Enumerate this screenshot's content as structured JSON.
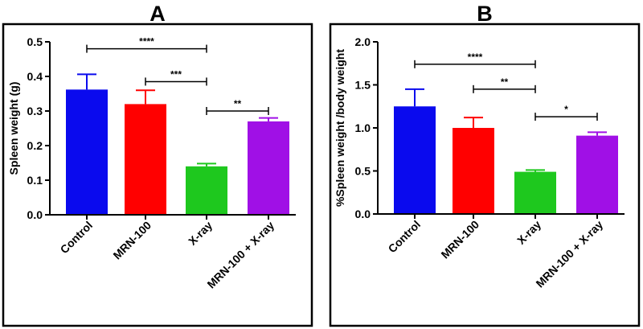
{
  "chart_data": [
    {
      "panel_label": "A",
      "type": "bar",
      "title": "",
      "xlabel": "",
      "ylabel": "Spleen weight (g)",
      "ylim": [
        0,
        0.5
      ],
      "yticks": [
        0.0,
        0.1,
        0.2,
        0.3,
        0.4,
        0.5
      ],
      "ytick_labels": [
        "0.0",
        "0.1",
        "0.2",
        "0.3",
        "0.4",
        "0.5"
      ],
      "categories": [
        "Control",
        "MRN-100",
        "X-ray",
        "MRN-100 + X-ray"
      ],
      "values": [
        0.362,
        0.32,
        0.14,
        0.27
      ],
      "errors": [
        0.044,
        0.04,
        0.008,
        0.01
      ],
      "colors": [
        "#0a0aee",
        "#ff0000",
        "#1ec81e",
        "#a010e6"
      ],
      "significance": [
        {
          "from": 0,
          "to": 2,
          "y": 0.48,
          "label": "****"
        },
        {
          "from": 1,
          "to": 2,
          "y": 0.385,
          "label": "***"
        },
        {
          "from": 2,
          "to": 3,
          "y": 0.3,
          "label": "**"
        }
      ],
      "grid": false
    },
    {
      "panel_label": "B",
      "type": "bar",
      "title": "",
      "xlabel": "",
      "ylabel": "%Spleen weight /body weight",
      "ylim": [
        0,
        2.0
      ],
      "yticks": [
        0.0,
        0.5,
        1.0,
        1.5,
        2.0
      ],
      "ytick_labels": [
        "0.0",
        "0.5",
        "1.0",
        "1.5",
        "2.0"
      ],
      "categories": [
        "Control",
        "MRN-100",
        "X-ray",
        "MRN-100 + X-ray"
      ],
      "values": [
        1.25,
        1.0,
        0.49,
        0.91
      ],
      "errors": [
        0.2,
        0.12,
        0.02,
        0.04
      ],
      "colors": [
        "#0a0aee",
        "#ff0000",
        "#1ec81e",
        "#a010e6"
      ],
      "significance": [
        {
          "from": 0,
          "to": 2,
          "y": 1.74,
          "label": "****"
        },
        {
          "from": 1,
          "to": 2,
          "y": 1.45,
          "label": "**"
        },
        {
          "from": 2,
          "to": 3,
          "y": 1.13,
          "label": "*"
        }
      ],
      "grid": false
    }
  ],
  "colors": {
    "axis": "#000000",
    "frame": "#000000"
  }
}
